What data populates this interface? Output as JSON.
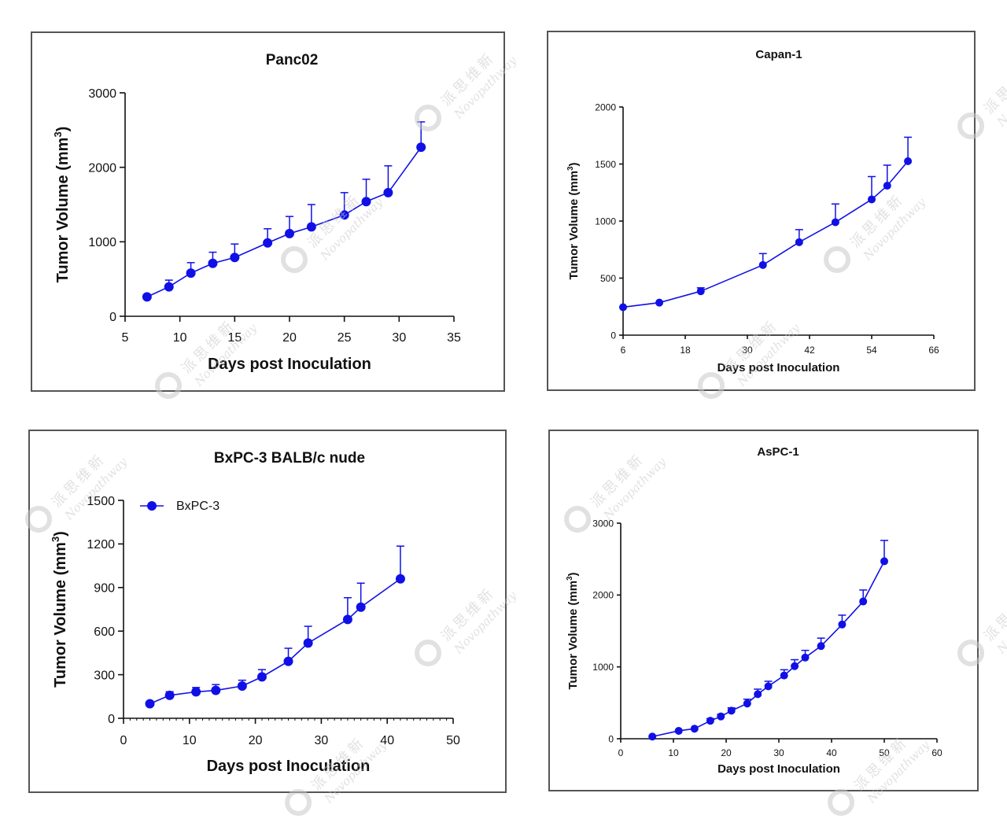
{
  "chart_data": [
    {
      "type": "line",
      "title": "Panc02",
      "xlabel": "Days post Inoculation",
      "ylabel": "Tumor Volume (mm",
      "ylabel_sup": "3",
      "ylabel_end": ")",
      "xlim": [
        5,
        35
      ],
      "ylim": [
        0,
        3000
      ],
      "xticks": [
        5,
        10,
        15,
        20,
        25,
        30,
        35
      ],
      "yticks": [
        0,
        1000,
        2000,
        3000
      ],
      "color": "#1010e6",
      "series": [
        {
          "name": "Panc02",
          "x": [
            7,
            9,
            11,
            13,
            15,
            18,
            20,
            22,
            25,
            27,
            29,
            32
          ],
          "y": [
            260,
            395,
            580,
            710,
            790,
            985,
            1110,
            1200,
            1360,
            1540,
            1660,
            2270
          ],
          "err": [
            0,
            90,
            140,
            150,
            180,
            190,
            230,
            300,
            300,
            300,
            360,
            340
          ]
        }
      ]
    },
    {
      "type": "line",
      "title": "Capan-1",
      "xlabel": "Days post Inoculation",
      "ylabel": "Tumor Volume (mm",
      "ylabel_sup": "3",
      "ylabel_end": ")",
      "xlim": [
        6,
        66
      ],
      "ylim": [
        0,
        2000
      ],
      "xticks": [
        6,
        18,
        30,
        42,
        54,
        66
      ],
      "yticks": [
        0,
        500,
        1000,
        1500,
        2000
      ],
      "color": "#1010e6",
      "series": [
        {
          "name": "Capan-1",
          "x": [
            6,
            13,
            21,
            33,
            40,
            47,
            54,
            57,
            61
          ],
          "y": [
            245,
            285,
            385,
            615,
            815,
            990,
            1190,
            1310,
            1525
          ],
          "err": [
            0,
            0,
            30,
            100,
            110,
            160,
            200,
            180,
            210
          ]
        }
      ]
    },
    {
      "type": "line",
      "title": "BxPC-3 BALB/c nude",
      "xlabel": "Days post Inoculation",
      "ylabel": "Tumor Volume (mm",
      "ylabel_sup": "3",
      "ylabel_end": ")",
      "xlim": [
        0,
        50
      ],
      "ylim": [
        0,
        1500
      ],
      "xticks": [
        0,
        10,
        20,
        30,
        40,
        50
      ],
      "yticks": [
        0,
        300,
        600,
        900,
        1200,
        1500
      ],
      "legend": "BxPC-3",
      "color": "#1010e6",
      "series": [
        {
          "name": "BxPC-3",
          "x": [
            4,
            7,
            11,
            14,
            18,
            21,
            25,
            28,
            34,
            36,
            42
          ],
          "y": [
            100,
            158,
            182,
            192,
            222,
            285,
            392,
            518,
            680,
            765,
            960
          ],
          "err": [
            0,
            25,
            30,
            40,
            40,
            50,
            90,
            115,
            150,
            165,
            225
          ]
        }
      ]
    },
    {
      "type": "line",
      "title": "AsPC-1",
      "xlabel": "Days post Inoculation",
      "ylabel": "Tumor Volume (mm",
      "ylabel_sup": "3",
      "ylabel_end": ")",
      "xlim": [
        0,
        60
      ],
      "ylim": [
        0,
        3000
      ],
      "xticks": [
        0,
        10,
        20,
        30,
        40,
        50,
        60
      ],
      "yticks": [
        0,
        1000,
        2000,
        3000
      ],
      "color": "#1010e6",
      "series": [
        {
          "name": "AsPC-1",
          "x": [
            6,
            11,
            14,
            17,
            19,
            21,
            24,
            26,
            28,
            31,
            33,
            35,
            38,
            42,
            46,
            50
          ],
          "y": [
            30,
            110,
            140,
            250,
            310,
            390,
            490,
            620,
            730,
            880,
            1010,
            1130,
            1290,
            1590,
            1910,
            2470
          ],
          "err": [
            0,
            0,
            0,
            30,
            30,
            40,
            60,
            70,
            70,
            80,
            90,
            100,
            110,
            130,
            160,
            290
          ]
        }
      ]
    }
  ],
  "watermark": {
    "cn": "派思维新",
    "en": "Novopathway",
    "color": "#c9c9c9"
  }
}
